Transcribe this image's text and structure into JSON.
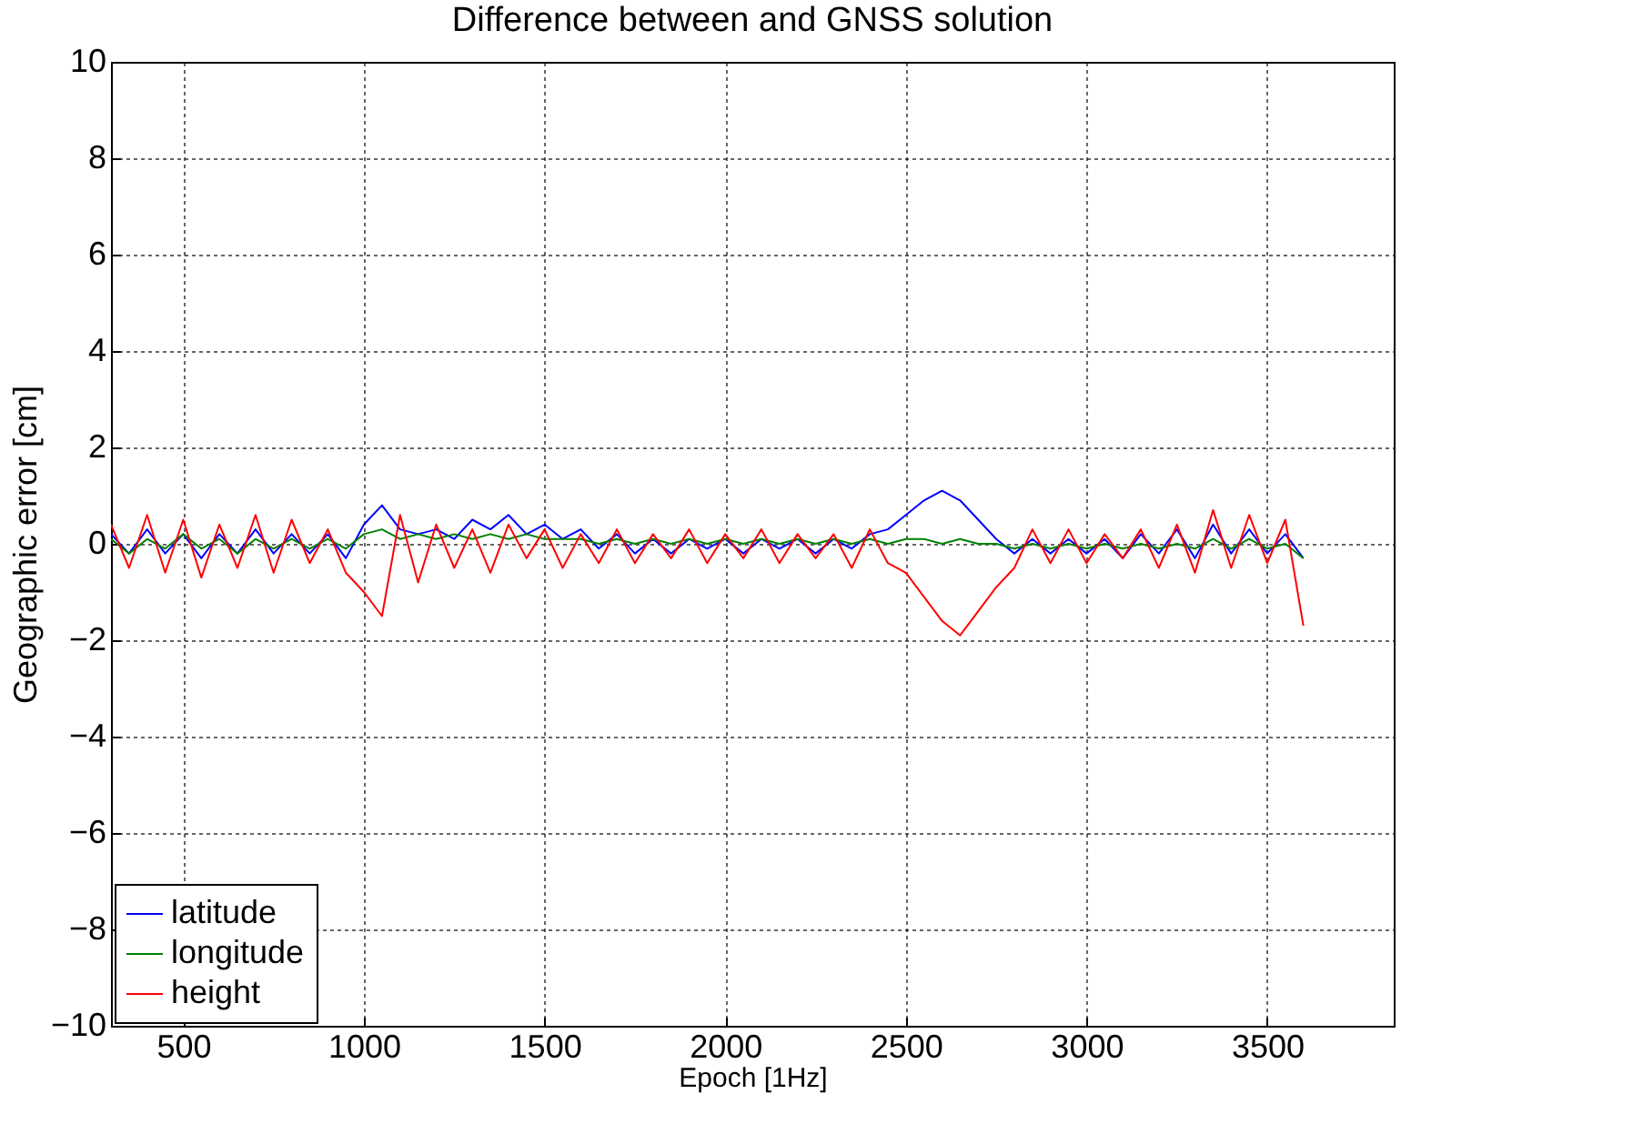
{
  "chart_data": {
    "type": "line",
    "title": "Difference between and GNSS solution",
    "xlabel": "Epoch [1Hz]",
    "ylabel": "Geographic error [cm]",
    "x": [
      300,
      350,
      400,
      450,
      500,
      550,
      600,
      650,
      700,
      750,
      800,
      850,
      900,
      950,
      1000,
      1050,
      1100,
      1150,
      1200,
      1250,
      1300,
      1350,
      1400,
      1450,
      1500,
      1550,
      1600,
      1650,
      1700,
      1750,
      1800,
      1850,
      1900,
      1950,
      2000,
      2050,
      2100,
      2150,
      2200,
      2250,
      2300,
      2350,
      2400,
      2450,
      2500,
      2550,
      2600,
      2650,
      2700,
      2750,
      2800,
      2850,
      2900,
      2950,
      3000,
      3050,
      3100,
      3150,
      3200,
      3250,
      3300,
      3350,
      3400,
      3450,
      3500,
      3550,
      3600
    ],
    "series": [
      {
        "name": "latitude",
        "color": "#0000ff",
        "values": [
          0.2,
          -0.2,
          0.3,
          -0.2,
          0.2,
          -0.3,
          0.2,
          -0.2,
          0.3,
          -0.2,
          0.2,
          -0.2,
          0.2,
          -0.3,
          0.4,
          0.8,
          0.3,
          0.2,
          0.3,
          0.1,
          0.5,
          0.3,
          0.6,
          0.2,
          0.4,
          0.1,
          0.3,
          -0.1,
          0.2,
          -0.2,
          0.1,
          -0.2,
          0.1,
          -0.1,
          0.1,
          -0.2,
          0.1,
          -0.1,
          0.1,
          -0.2,
          0.1,
          -0.1,
          0.2,
          0.3,
          0.6,
          0.9,
          1.1,
          0.9,
          0.5,
          0.1,
          -0.2,
          0.1,
          -0.2,
          0.1,
          -0.2,
          0.1,
          -0.3,
          0.2,
          -0.2,
          0.3,
          -0.3,
          0.4,
          -0.2,
          0.3,
          -0.2,
          0.2,
          -0.3
        ]
      },
      {
        "name": "longitude",
        "color": "#008000",
        "values": [
          0.1,
          -0.2,
          0.1,
          -0.1,
          0.2,
          -0.1,
          0.1,
          -0.2,
          0.1,
          -0.1,
          0.1,
          -0.1,
          0.1,
          -0.1,
          0.2,
          0.3,
          0.1,
          0.2,
          0.1,
          0.2,
          0.1,
          0.2,
          0.1,
          0.2,
          0.1,
          0.1,
          0.1,
          0.0,
          0.1,
          0.0,
          0.1,
          0.0,
          0.1,
          0.0,
          0.1,
          0.0,
          0.1,
          0.0,
          0.1,
          0.0,
          0.1,
          0.0,
          0.1,
          0.0,
          0.1,
          0.1,
          0.0,
          0.1,
          0.0,
          0.0,
          -0.1,
          0.0,
          -0.1,
          0.0,
          -0.1,
          0.0,
          -0.1,
          0.0,
          -0.1,
          0.0,
          -0.1,
          0.1,
          -0.1,
          0.1,
          -0.1,
          0.0,
          -0.3
        ]
      },
      {
        "name": "height",
        "color": "#ff0000",
        "values": [
          0.4,
          -0.5,
          0.6,
          -0.6,
          0.5,
          -0.7,
          0.4,
          -0.5,
          0.6,
          -0.6,
          0.5,
          -0.4,
          0.3,
          -0.6,
          -1.0,
          -1.5,
          0.6,
          -0.8,
          0.4,
          -0.5,
          0.3,
          -0.6,
          0.4,
          -0.3,
          0.3,
          -0.5,
          0.2,
          -0.4,
          0.3,
          -0.4,
          0.2,
          -0.3,
          0.3,
          -0.4,
          0.2,
          -0.3,
          0.3,
          -0.4,
          0.2,
          -0.3,
          0.2,
          -0.5,
          0.3,
          -0.4,
          -0.6,
          -1.1,
          -1.6,
          -1.9,
          -1.4,
          -0.9,
          -0.5,
          0.3,
          -0.4,
          0.3,
          -0.4,
          0.2,
          -0.3,
          0.3,
          -0.5,
          0.4,
          -0.6,
          0.7,
          -0.5,
          0.6,
          -0.4,
          0.5,
          -1.7
        ]
      }
    ],
    "xlim": [
      300,
      3850
    ],
    "xticks": [
      500,
      1000,
      1500,
      2000,
      2500,
      3000,
      3500
    ],
    "ylim": [
      -10,
      10
    ],
    "yticks": [
      -10,
      -8,
      -6,
      -4,
      -2,
      0,
      2,
      4,
      6,
      8,
      10
    ],
    "grid": true,
    "legend": "bottom left",
    "line_style": "solid"
  }
}
